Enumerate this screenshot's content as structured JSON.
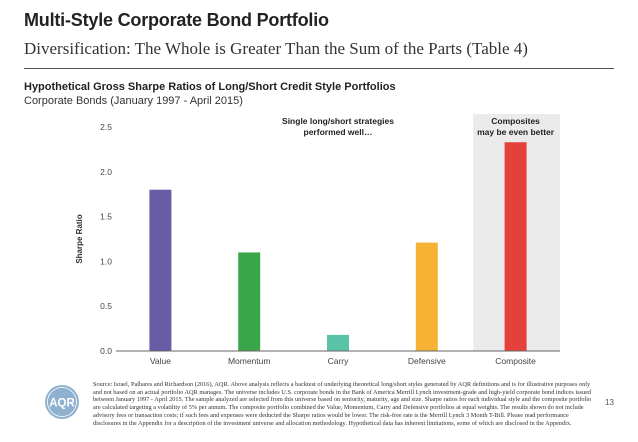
{
  "slide": {
    "title": "Multi-Style Corporate Bond Portfolio",
    "subtitle": "Diversification:  The Whole is Greater Than the Sum of the Parts (Table 4)",
    "page_number": "13",
    "logo_text": "AQR",
    "source": "Source: Israel, Palhares and Richardson (2016), AQR. Above analysis reflects a backtest of underlying theoretical long/short styles generated by AQR definitions and is for illustrative purposes only and not based on an actual portfolio AQR manages. The universe includes U.S. corporate bonds in the Bank of America Merrill Lynch investment-grade and high-yield corporate bond indices issued between January 1997 - April 2015. The sample analyzed are selected from this universe based on seniority, maturity, age and size. Sharpe ratios for each individual style and the composite portfolio are calculated targeting a volatility of 5% per annum. The composite portfolio combined the Value, Momentum, Carry and Defensive portfolios at equal weights. The results shown do not include advisory fees or transaction costs; if such fees and expenses were deducted the Sharpe ratios would be lower. The risk-free rate is the Merrill Lynch 3 Month T-Bill. Please read performance disclosures in the Appendix for a description of the investment universe and allocation methodology. Hypothetical data has inherent limitations, some of which are disclosed in the Appendix."
  },
  "chart_data": {
    "type": "bar",
    "title": "Hypothetical Gross Sharpe Ratios of Long/Short Credit Style Portfolios",
    "subtitle": "Corporate Bonds (January 1997 - April 2015)",
    "xlabel": "",
    "ylabel": "Sharpe Ratio",
    "categories": [
      "Value",
      "Momentum",
      "Carry",
      "Defensive",
      "Composite"
    ],
    "values": [
      1.8,
      1.1,
      0.18,
      1.21,
      2.33
    ],
    "colors": [
      "#6a5ba5",
      "#3aa64a",
      "#58c3a7",
      "#f7b234",
      "#e5413a"
    ],
    "ylim": [
      0,
      2.5
    ],
    "yticks": [
      "0.0",
      "0.5",
      "1.0",
      "1.5",
      "2.0",
      "2.5"
    ],
    "grid": false,
    "highlight_category": "Composite",
    "highlight_color": "#ebebeb",
    "annotations": [
      {
        "text": [
          "Single long/short strategies",
          "performed well…"
        ],
        "anchor": "Carry"
      },
      {
        "text": [
          "Composites",
          "may be even better"
        ],
        "anchor": "Composite"
      }
    ]
  }
}
